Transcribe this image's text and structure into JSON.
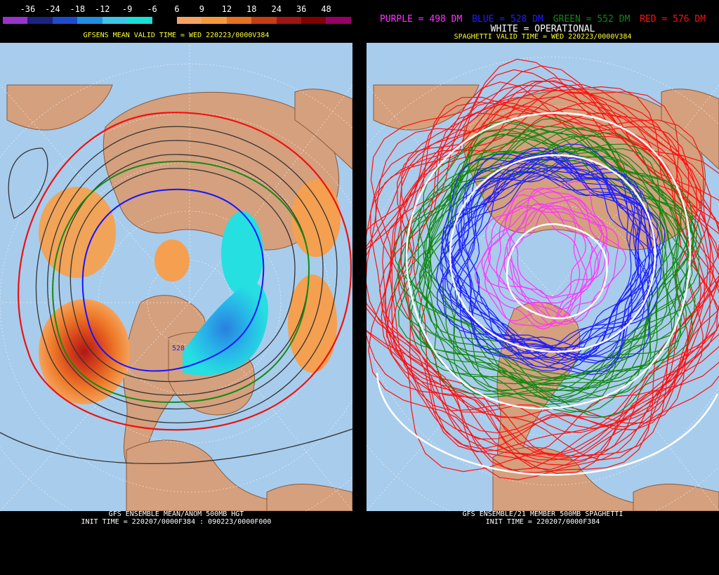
{
  "left_panel": {
    "colorbar": {
      "labels": [
        "-36",
        "-24",
        "-18",
        "-12",
        "-9",
        "-6",
        "6",
        "9",
        "12",
        "18",
        "24",
        "36",
        "48"
      ],
      "colors": [
        "#9933cc",
        "#1a237e",
        "#1c4ccc",
        "#1f8fe0",
        "#3cc6e8",
        "#18e0d4",
        "#000000",
        "#f4a460",
        "#f59a3c",
        "#e8701e",
        "#c83c14",
        "#a01414",
        "#800000",
        "#990066"
      ]
    },
    "valid_header": "GFSENS MEAN VALID TIME = WED 220223/0000V384",
    "contour_label": "528",
    "footer_line1": "GFS ENSEMBLE MEAN/ANOM 500MB HGT",
    "footer_line2": "INIT TIME = 220207/0000F384 : 090223/0000F000"
  },
  "right_panel": {
    "legend": {
      "purple_label": "PURPLE = 498 DM",
      "blue_label": "BLUE = 528 DM",
      "green_label": "GREEN = 552 DM",
      "red_label": "RED = 576 DM",
      "white_label": "WHITE = OPERATIONAL"
    },
    "legend_colors": {
      "purple": "#ff33ff",
      "blue": "#1e1eff",
      "green": "#118811",
      "red": "#ff1010",
      "white": "#ffffff"
    },
    "valid_header": "SPAGHETTI VALID TIME = WED 220223/0000V384",
    "footer_line1": "GFS ENSEMBLE/21 MEMBER 500MB SPAGHETTI",
    "footer_line2": "INIT TIME = 220207/0000F384"
  }
}
